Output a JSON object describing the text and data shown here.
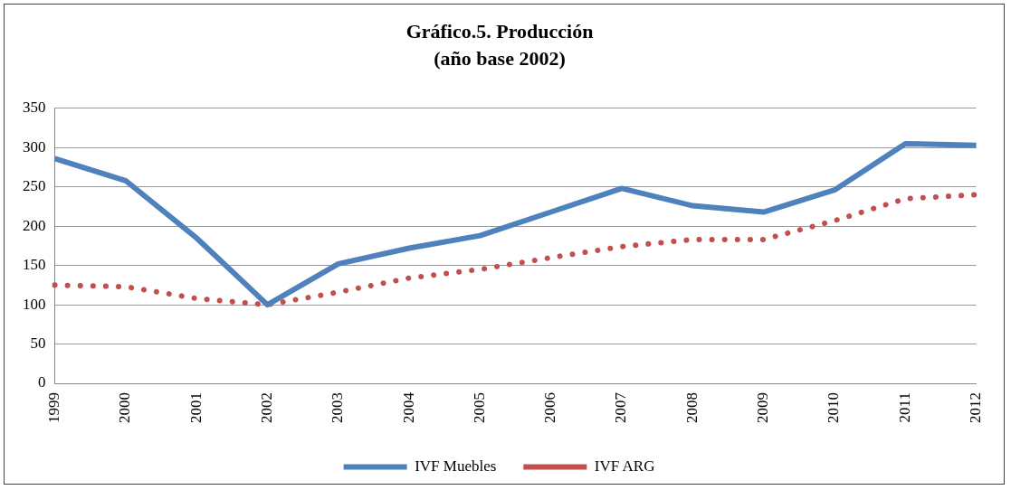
{
  "chart_data": {
    "type": "line",
    "title": "Gráfico.5. Producción",
    "subtitle": "(año base 2002)",
    "categories": [
      "1999",
      "2000",
      "2001",
      "2002",
      "2003",
      "2004",
      "2005",
      "2006",
      "2007",
      "2008",
      "2009",
      "2010",
      "2011",
      "2012"
    ],
    "series": [
      {
        "name": "IVF Muebles",
        "color": "#4f81bd",
        "line_style": "solid",
        "values": [
          286,
          258,
          185,
          100,
          152,
          172,
          188,
          218,
          248,
          226,
          218,
          246,
          305,
          303
        ]
      },
      {
        "name": "IVF ARG",
        "color": "#c0504d",
        "line_style": "dotted",
        "values": [
          125,
          123,
          108,
          100,
          116,
          134,
          145,
          160,
          174,
          183,
          183,
          207,
          235,
          240
        ]
      }
    ],
    "ylim": [
      0,
      350
    ],
    "yticks": [
      0,
      50,
      100,
      150,
      200,
      250,
      300,
      350
    ],
    "grid": "y",
    "legend": "bottom",
    "marker": "none"
  }
}
